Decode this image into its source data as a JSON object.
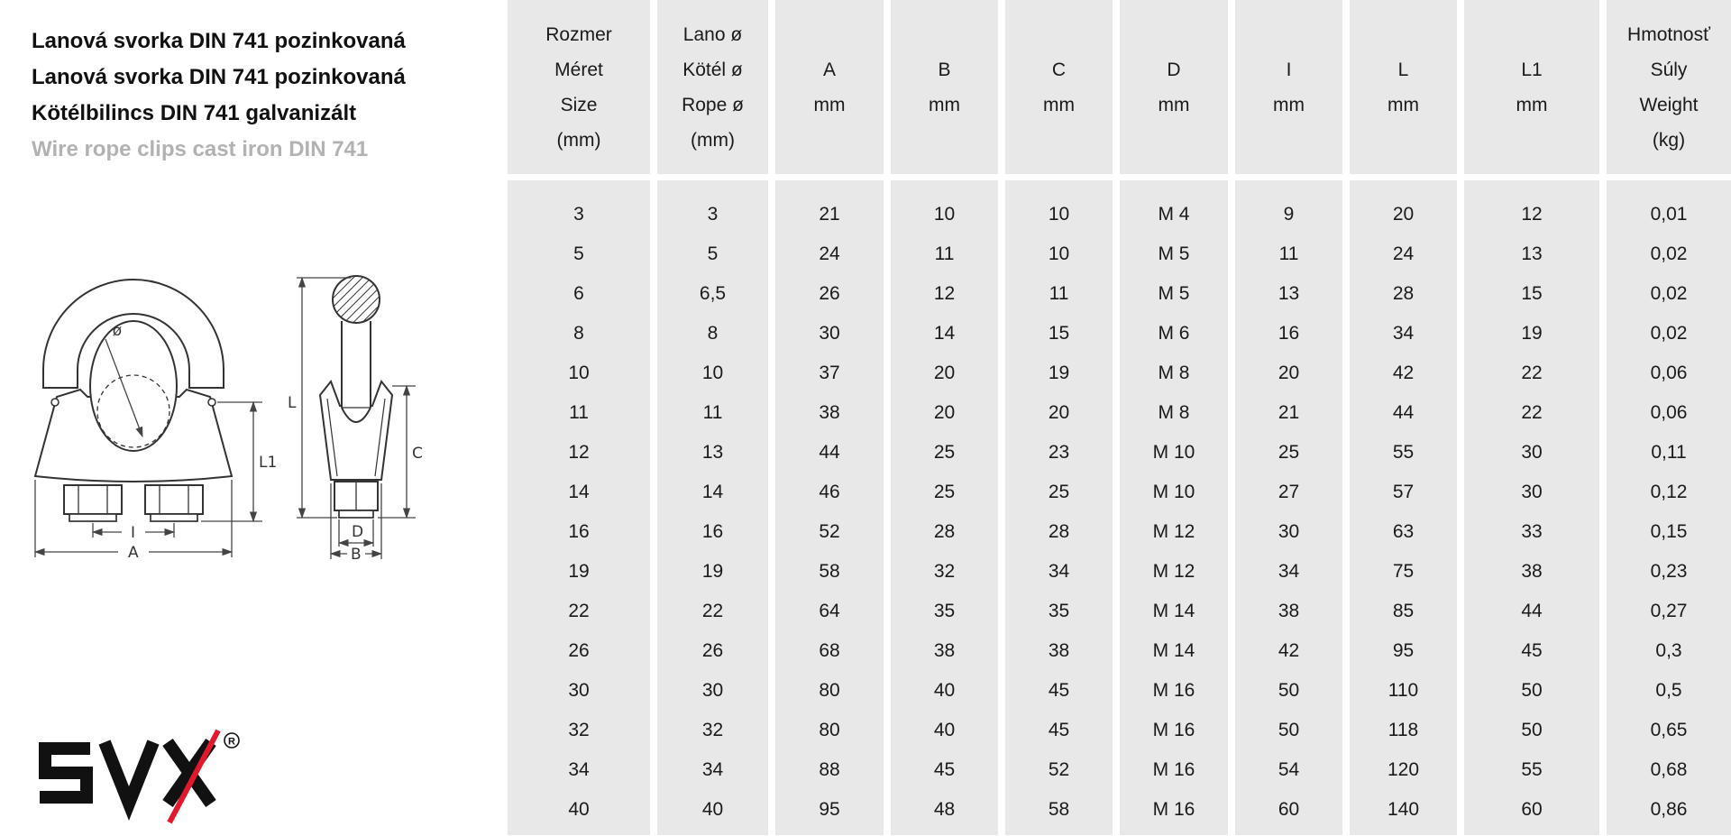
{
  "titles": {
    "line1": "Lanová svorka DIN 741 pozinkovaná",
    "line2": "Lanová svorka DIN 741 pozinkovaná",
    "line3": "Kötélbilincs DIN 741 galvanizált",
    "line4": "Wire rope clips cast iron DIN 741"
  },
  "logo": {
    "text": "SVX",
    "registered_mark": "R",
    "text_color": "#111111",
    "slash_color": "#e2192c"
  },
  "diagram": {
    "labels": {
      "diameter": "ø",
      "l1": "L1",
      "i": "I",
      "a": "A",
      "l": "L",
      "c": "C",
      "d": "D",
      "b": "B"
    }
  },
  "table": {
    "header_bg": "#e8e8e8",
    "columns": [
      {
        "id": "size",
        "lines": [
          "Rozmer",
          "Méret",
          "Size",
          "(mm)"
        ]
      },
      {
        "id": "rope-diameter",
        "lines": [
          "Lano ø",
          "Kötél ø",
          "Rope ø",
          "(mm)"
        ]
      },
      {
        "id": "a",
        "lines": [
          "A",
          "mm"
        ]
      },
      {
        "id": "b",
        "lines": [
          "B",
          "mm"
        ]
      },
      {
        "id": "c",
        "lines": [
          "C",
          "mm"
        ]
      },
      {
        "id": "d",
        "lines": [
          "D",
          "mm"
        ]
      },
      {
        "id": "i",
        "lines": [
          "I",
          "mm"
        ]
      },
      {
        "id": "l",
        "lines": [
          "L",
          "mm"
        ]
      },
      {
        "id": "l1",
        "lines": [
          "L1",
          "mm"
        ]
      },
      {
        "id": "weight",
        "lines": [
          "Hmotnosť",
          "Súly",
          "Weight",
          "(kg)"
        ]
      }
    ],
    "rows": [
      [
        "3",
        "3",
        "21",
        "10",
        "10",
        "M 4",
        "9",
        "20",
        "12",
        "0,01"
      ],
      [
        "5",
        "5",
        "24",
        "11",
        "10",
        "M 5",
        "11",
        "24",
        "13",
        "0,02"
      ],
      [
        "6",
        "6,5",
        "26",
        "12",
        "11",
        "M 5",
        "13",
        "28",
        "15",
        "0,02"
      ],
      [
        "8",
        "8",
        "30",
        "14",
        "15",
        "M 6",
        "16",
        "34",
        "19",
        "0,02"
      ],
      [
        "10",
        "10",
        "37",
        "20",
        "19",
        "M 8",
        "20",
        "42",
        "22",
        "0,06"
      ],
      [
        "11",
        "11",
        "38",
        "20",
        "20",
        "M 8",
        "21",
        "44",
        "22",
        "0,06"
      ],
      [
        "12",
        "13",
        "44",
        "25",
        "23",
        "M 10",
        "25",
        "55",
        "30",
        "0,11"
      ],
      [
        "14",
        "14",
        "46",
        "25",
        "25",
        "M 10",
        "27",
        "57",
        "30",
        "0,12"
      ],
      [
        "16",
        "16",
        "52",
        "28",
        "28",
        "M 12",
        "30",
        "63",
        "33",
        "0,15"
      ],
      [
        "19",
        "19",
        "58",
        "32",
        "34",
        "M 12",
        "34",
        "75",
        "38",
        "0,23"
      ],
      [
        "22",
        "22",
        "64",
        "35",
        "35",
        "M 14",
        "38",
        "85",
        "44",
        "0,27"
      ],
      [
        "26",
        "26",
        "68",
        "38",
        "38",
        "M 14",
        "42",
        "95",
        "45",
        "0,3"
      ],
      [
        "30",
        "30",
        "80",
        "40",
        "45",
        "M 16",
        "50",
        "110",
        "50",
        "0,5"
      ],
      [
        "32",
        "32",
        "80",
        "40",
        "45",
        "M 16",
        "50",
        "118",
        "50",
        "0,65"
      ],
      [
        "34",
        "34",
        "88",
        "45",
        "52",
        "M 16",
        "54",
        "120",
        "55",
        "0,68"
      ],
      [
        "40",
        "40",
        "95",
        "48",
        "58",
        "M 16",
        "60",
        "140",
        "60",
        "0,86"
      ]
    ]
  }
}
